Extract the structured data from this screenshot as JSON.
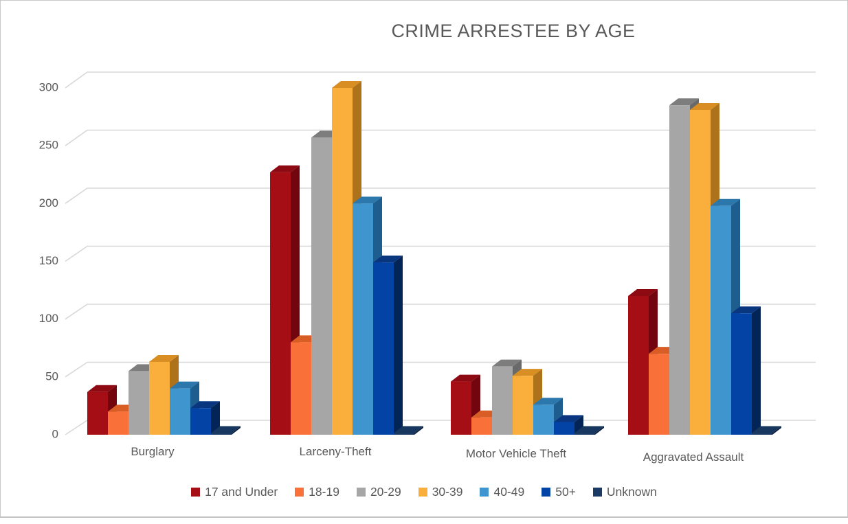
{
  "page": {
    "title": "CRIME ARRESTEE BY AGE"
  },
  "colors": {
    "text": "#595959",
    "gridline": "#d8d8d8",
    "page_border": "#c9c9c9"
  },
  "chart_data": {
    "type": "bar",
    "style": "3d-clustered-column",
    "title": "CRIME ARRESTEE BY AGE",
    "xlabel": "",
    "ylabel": "",
    "ylim": [
      0,
      300
    ],
    "yticks": [
      0,
      50,
      100,
      150,
      200,
      250,
      300
    ],
    "grid": true,
    "legend_position": "bottom",
    "categories": [
      "Burglary",
      "Larceny-Theft",
      "Motor Vehicle Theft",
      "Aggravated Assault"
    ],
    "series": [
      {
        "name": "17 and Under",
        "values": [
          37,
          227,
          46,
          120
        ],
        "color": "#A50E15",
        "top_color": "#8D0A13",
        "side_color": "#72050D"
      },
      {
        "name": "18-19",
        "values": [
          20,
          80,
          15,
          70
        ],
        "color": "#F97138",
        "top_color": "#D95E26",
        "side_color": "#BA4A1C"
      },
      {
        "name": "20-29",
        "values": [
          55,
          257,
          59,
          285
        ],
        "color": "#A6A6A6",
        "top_color": "#7D7D7D",
        "side_color": "#696969"
      },
      {
        "name": "30-39",
        "values": [
          63,
          300,
          51,
          281
        ],
        "color": "#FAAF3D",
        "top_color": "#D88E23",
        "side_color": "#AE731A"
      },
      {
        "name": "40-49",
        "values": [
          40,
          200,
          26,
          198
        ],
        "color": "#3F96CE",
        "top_color": "#2C77AC",
        "side_color": "#1D5E8E"
      },
      {
        "name": "50+",
        "values": [
          23,
          149,
          11,
          105
        ],
        "color": "#0443A6",
        "top_color": "#0A3680",
        "side_color": "#032457"
      },
      {
        "name": "Unknown",
        "values": [
          1,
          1,
          1,
          1
        ],
        "color": "#1B3A63",
        "top_color": "#17375E",
        "side_color": "#0D1F3C"
      }
    ]
  }
}
